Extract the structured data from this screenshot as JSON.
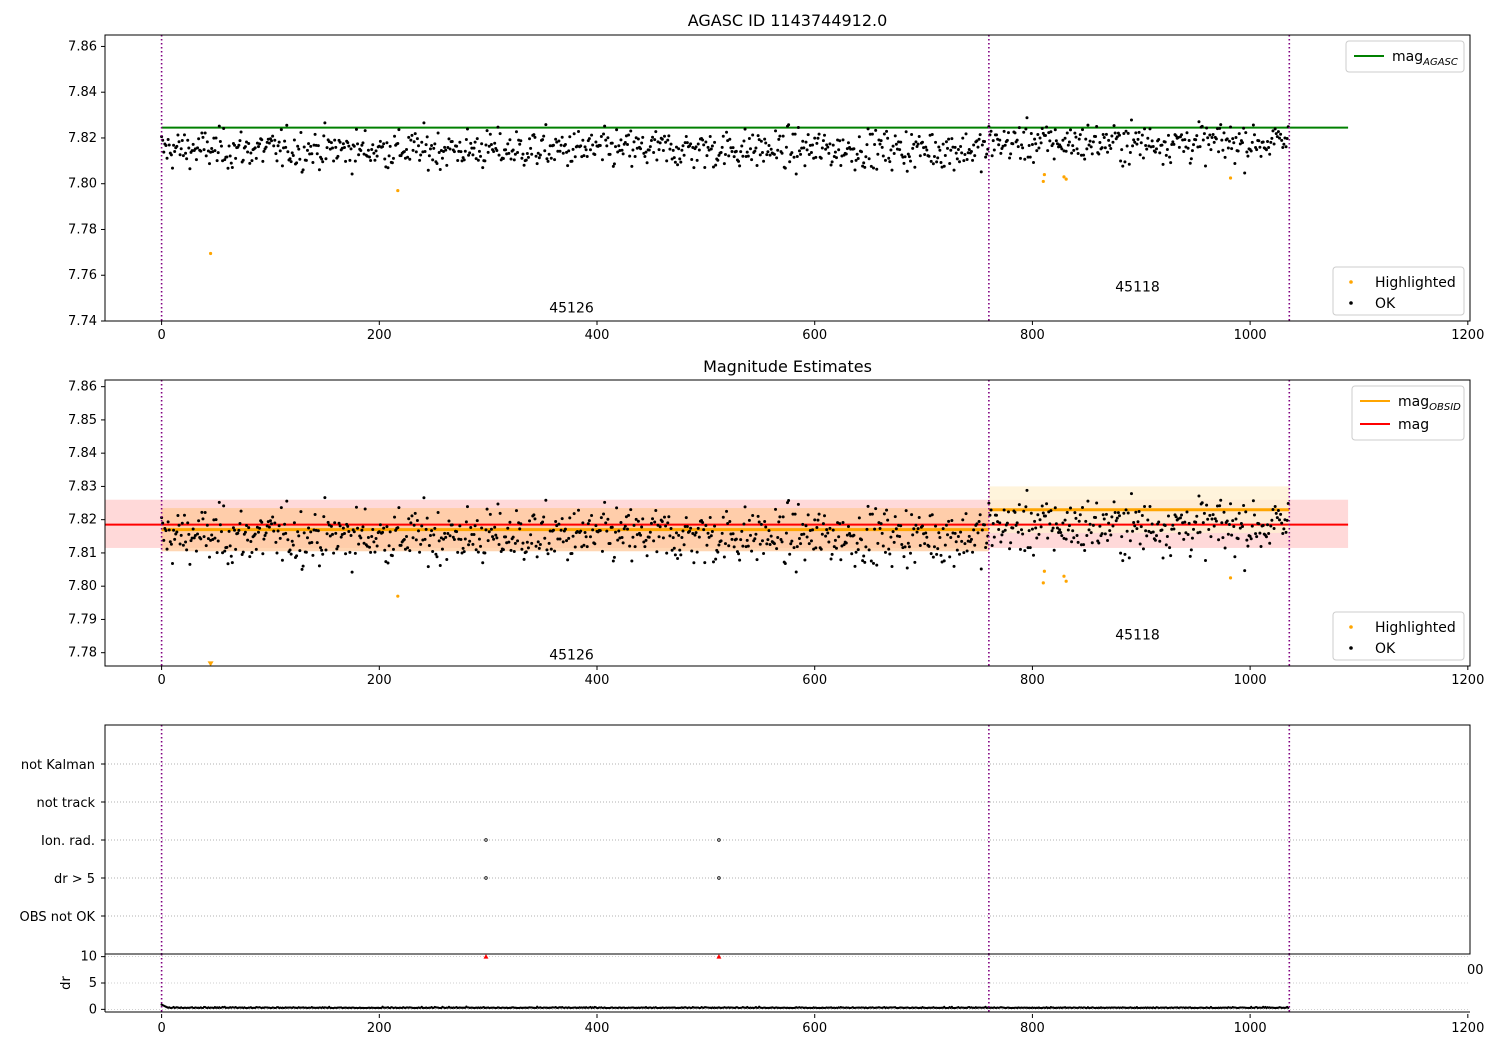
{
  "chart_data": [
    {
      "type": "scatter",
      "title": "AGASC ID 1143744912.0",
      "xlim": [
        -52,
        1202
      ],
      "ylim": [
        7.74,
        7.865
      ],
      "xticks": [
        "0",
        "200",
        "400",
        "600",
        "800",
        "1000",
        "1200"
      ],
      "yticks": [
        "7.74",
        "7.76",
        "7.78",
        "7.80",
        "7.82",
        "7.84",
        "7.86"
      ],
      "obsid_boundaries": [
        0,
        760,
        1036
      ],
      "obsid_labels": [
        {
          "text": "45126",
          "x": 380,
          "y": 7.746
        },
        {
          "text": "45118",
          "x": 900,
          "y": 7.755
        }
      ],
      "reference_lines": [
        {
          "name": "mag$_{AGASC}$",
          "y": 7.8245,
          "x_range": [
            0,
            1090
          ],
          "color": "#008000"
        }
      ],
      "legend_lines": [
        {
          "label": "mag",
          "sub": "AGASC",
          "color": "#008000"
        }
      ],
      "legend_points": [
        {
          "label": "Highlighted",
          "color": "#ffa500"
        },
        {
          "label": "OK",
          "color": "#000000"
        }
      ],
      "series": [
        {
          "name": "OK",
          "color": "#000000",
          "n_points": 1036,
          "x_range": [
            0,
            1036
          ],
          "y_mean_by_obsid": [
            7.815,
            7.818
          ],
          "y_spread": 0.007
        },
        {
          "name": "Highlighted",
          "color": "#ffa500",
          "x": [
            45,
            217,
            810,
            811,
            829,
            831,
            982
          ],
          "y": [
            7.7695,
            7.797,
            7.801,
            7.804,
            7.803,
            7.802,
            7.8025
          ]
        }
      ]
    },
    {
      "type": "scatter",
      "title": "Magnitude Estimates",
      "xlim": [
        -52,
        1202
      ],
      "ylim": [
        7.776,
        7.862
      ],
      "xticks": [
        "0",
        "200",
        "400",
        "600",
        "800",
        "1000",
        "1200"
      ],
      "yticks": [
        "7.78",
        "7.79",
        "7.80",
        "7.81",
        "7.82",
        "7.83",
        "7.84",
        "7.85",
        "7.86"
      ],
      "obsid_boundaries": [
        0,
        760,
        1036
      ],
      "obsid_labels": [
        {
          "text": "45126",
          "x": 380,
          "y": 7.7795
        },
        {
          "text": "45118",
          "x": 900,
          "y": 7.7855
        }
      ],
      "bands": [
        {
          "x_range": [
            -52,
            1090
          ],
          "y_range": [
            7.8115,
            7.826
          ],
          "color": "#ffcccc"
        },
        {
          "x_range": [
            0,
            760
          ],
          "y_range": [
            7.8105,
            7.8235
          ],
          "color": "#ffc89a"
        },
        {
          "x_range": [
            760,
            1036
          ],
          "y_range": [
            7.816,
            7.83
          ],
          "color": "#fff0d0"
        }
      ],
      "reference_lines": [
        {
          "name": "mag_OBSID 45126",
          "y": 7.817,
          "x_range": [
            0,
            760
          ],
          "color": "#ffa500"
        },
        {
          "name": "mag_OBSID 45118",
          "y": 7.823,
          "x_range": [
            760,
            1036
          ],
          "color": "#ffa500"
        },
        {
          "name": "mag",
          "y": 7.8185,
          "x_range": [
            -52,
            1090
          ],
          "color": "#ff0000"
        }
      ],
      "legend_lines": [
        {
          "label": "mag",
          "sub": "OBSID",
          "color": "#ffa500"
        },
        {
          "label": "mag",
          "sub": "",
          "color": "#ff0000"
        }
      ],
      "legend_points": [
        {
          "label": "Highlighted",
          "color": "#ffa500"
        },
        {
          "label": "OK",
          "color": "#000000"
        }
      ],
      "series": [
        {
          "name": "OK",
          "color": "#000000",
          "n_points": 1036,
          "x_range": [
            0,
            1036
          ],
          "y_mean_by_obsid": [
            7.815,
            7.818
          ],
          "y_spread": 0.007
        },
        {
          "name": "Highlighted",
          "color": "#ffa500",
          "x": [
            217,
            810,
            811,
            829,
            831,
            982
          ],
          "y": [
            7.797,
            7.801,
            7.8045,
            7.803,
            7.8015,
            7.8025
          ]
        },
        {
          "name": "Highlighted off-scale",
          "color": "#ffa500",
          "marker": "triangle-down",
          "x": [
            45
          ],
          "y": [
            7.7765
          ]
        }
      ]
    },
    {
      "type": "scatter",
      "title": "",
      "xlim": [
        -52,
        1202
      ],
      "categories": [
        "OBS not OK",
        "dr > 5",
        "Ion. rad.",
        "not track",
        "not Kalman"
      ],
      "obsid_boundaries": [
        0,
        760,
        1036
      ],
      "flags": [
        {
          "category": "Ion. rad.",
          "x": [
            298,
            512
          ]
        },
        {
          "category": "dr > 5",
          "x": [
            298,
            512
          ]
        }
      ]
    },
    {
      "type": "line",
      "ylabel": "dr",
      "xlim": [
        -52,
        1202
      ],
      "ylim": [
        -0.5,
        10.5
      ],
      "xticks": [
        "0",
        "200",
        "400",
        "600",
        "800",
        "1000",
        "1200"
      ],
      "yticks": [
        "0",
        "5",
        "10"
      ],
      "partial_tick_label": "00",
      "obsid_boundaries": [
        0,
        760,
        1036
      ],
      "clipped_markers": {
        "color": "#ff0000",
        "x": [
          298,
          512
        ],
        "y": [
          10,
          10
        ]
      },
      "series": [
        {
          "name": "dr",
          "color": "#000000",
          "n_points": 1036,
          "x_range": [
            0,
            1036
          ],
          "y_typical": 0.3,
          "y_max": 1.0
        }
      ]
    }
  ]
}
